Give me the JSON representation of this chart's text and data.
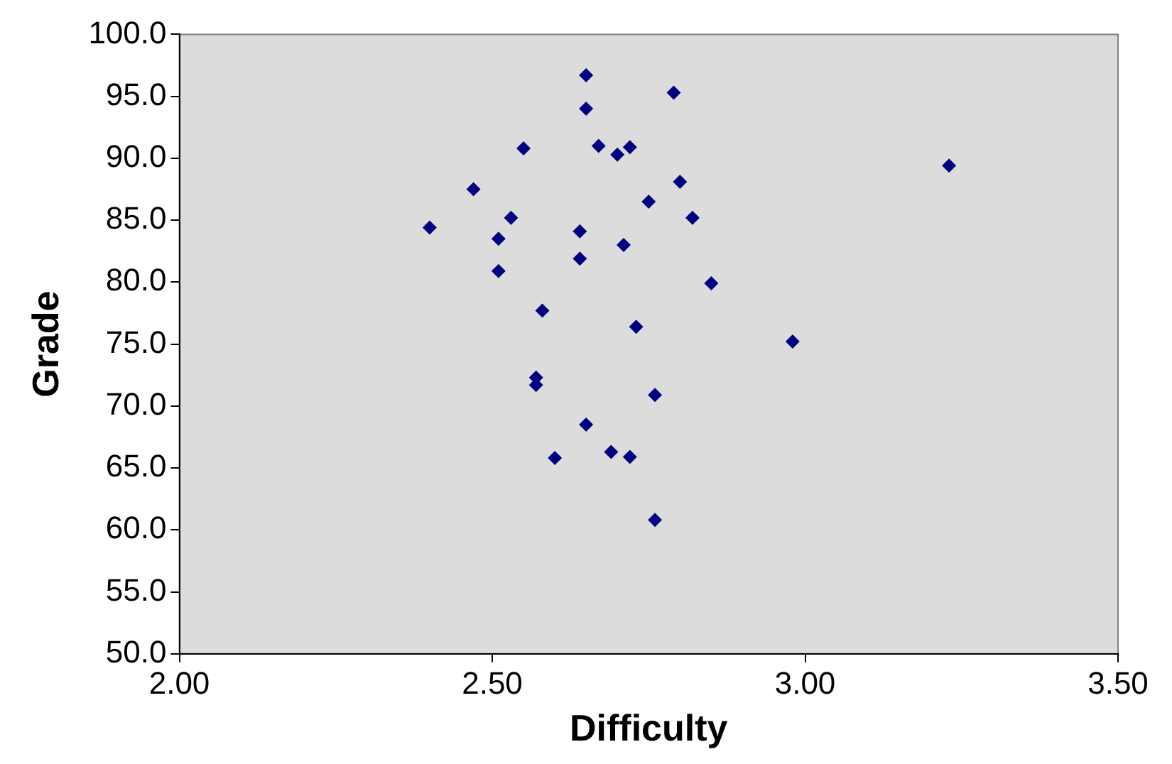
{
  "chart_data": {
    "type": "scatter",
    "xlabel": "Difficulty",
    "ylabel": "Grade",
    "marker": "diamond",
    "grid": false,
    "legend": false,
    "xlim": [
      2,
      3.5
    ],
    "ylim": [
      50,
      100
    ],
    "xticks": [
      {
        "value": 2,
        "label": "2.00"
      },
      {
        "value": 2.5,
        "label": "2.50"
      },
      {
        "value": 3,
        "label": "3.00"
      },
      {
        "value": 3.5,
        "label": "3.50"
      }
    ],
    "yticks": [
      {
        "value": 50,
        "label": "50.0"
      },
      {
        "value": 55,
        "label": "55.0"
      },
      {
        "value": 60,
        "label": "60.0"
      },
      {
        "value": 65,
        "label": "65.0"
      },
      {
        "value": 70,
        "label": "70.0"
      },
      {
        "value": 75,
        "label": "75.0"
      },
      {
        "value": 80,
        "label": "80.0"
      },
      {
        "value": 85,
        "label": "85.0"
      },
      {
        "value": 90,
        "label": "90.0"
      },
      {
        "value": 95,
        "label": "95.0"
      },
      {
        "value": 100,
        "label": "100.0"
      }
    ],
    "series": [
      {
        "color": "#000080",
        "x": [
          2.65,
          2.79,
          2.65,
          2.55,
          2.67,
          2.72,
          2.7,
          3.23,
          2.47,
          2.8,
          2.75,
          2.4,
          2.53,
          2.82,
          2.51,
          2.64,
          2.71,
          2.64,
          2.51,
          2.85,
          2.58,
          2.73,
          2.98,
          2.57,
          2.57,
          2.76,
          2.65,
          2.6,
          2.69,
          2.72,
          2.76
        ],
        "values": [
          96.7,
          95.3,
          94.0,
          90.8,
          91.0,
          90.9,
          90.3,
          89.4,
          87.5,
          88.1,
          86.5,
          84.4,
          85.2,
          85.2,
          83.5,
          84.1,
          83.0,
          81.9,
          80.9,
          79.9,
          77.7,
          76.4,
          75.2,
          72.3,
          71.7,
          70.9,
          68.5,
          65.8,
          66.3,
          65.9,
          60.8
        ]
      }
    ]
  }
}
